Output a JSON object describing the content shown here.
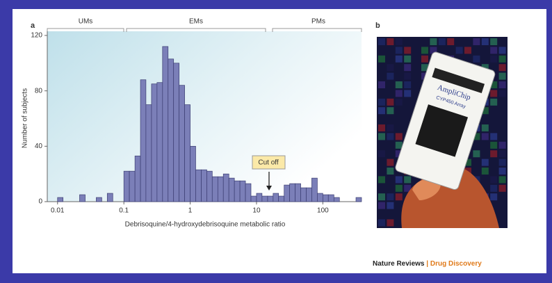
{
  "chart_data": {
    "type": "histogram",
    "xlabel": "Debrisoquine/4-hydroxydebrisoquine metabolic ratio",
    "ylabel": "Number of subjects",
    "brackets": [
      "UMs",
      "EMs",
      "PMs"
    ],
    "annotation": "Cut off",
    "color": "#7b7fb8",
    "xscale": "log",
    "bins": [
      0.01,
      0.0121,
      0.0147,
      0.0178,
      0.0215,
      0.0261,
      0.0316,
      0.0383,
      0.0464,
      0.0562,
      0.0681,
      0.0825,
      0.1,
      0.121,
      0.147,
      0.178,
      0.215,
      0.261,
      0.316,
      0.383,
      0.464,
      0.562,
      0.681,
      0.825,
      1,
      1.21,
      1.47,
      1.78,
      2.15,
      2.61,
      3.16,
      3.83,
      4.64,
      5.62,
      6.81,
      8.25,
      10,
      12.1,
      14.7,
      17.8,
      21.5,
      26.1,
      31.6,
      38.3,
      46.4,
      56.2,
      68.1,
      82.5,
      100,
      121,
      147,
      178,
      215,
      261,
      316,
      383
    ],
    "values": [
      3,
      0,
      0,
      0,
      5,
      0,
      0,
      3,
      0,
      6,
      0,
      0,
      22,
      22,
      33,
      88,
      70,
      85,
      86,
      112,
      103,
      100,
      84,
      70,
      40,
      23,
      23,
      22,
      18,
      18,
      20,
      17,
      15,
      15,
      13,
      4,
      6,
      4,
      4,
      6,
      4,
      12,
      13,
      13,
      10,
      10,
      17,
      6,
      5,
      5,
      3,
      0,
      0,
      0,
      3
    ],
    "xlim": [
      0.007,
      383
    ],
    "xticks": [
      0.01,
      0.1,
      1,
      10,
      100
    ],
    "ylim": [
      0,
      123
    ],
    "yticks": [
      0,
      40,
      80,
      120
    ]
  },
  "panel_labels": [
    "a",
    "b"
  ],
  "photo_texts": [
    "AmpliChip",
    "CYP450 Array"
  ],
  "footer": {
    "journal": "Nature Reviews",
    "separator": "|",
    "section": "Drug Discovery"
  }
}
